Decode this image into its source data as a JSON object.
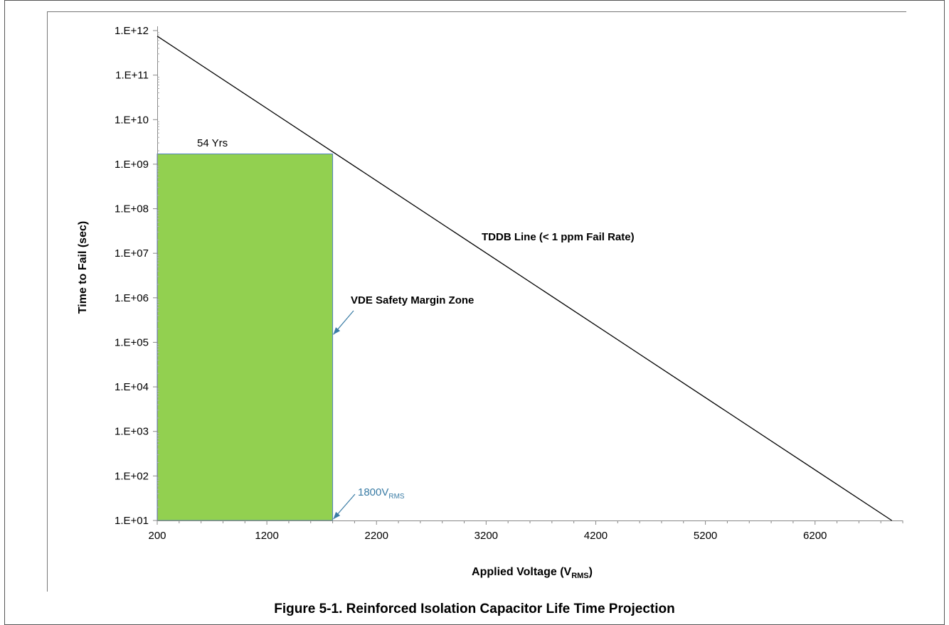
{
  "caption": "Figure 5-1. Reinforced Isolation Capacitor Life Time Projection",
  "chart_data": {
    "type": "line",
    "title": "",
    "xlabel": "Applied Voltage (V",
    "xlabel_sub": "RMS",
    "xlabel_close": ")",
    "ylabel": "Time to Fail (sec)",
    "y_scale": "log",
    "xlim": [
      200,
      7000
    ],
    "ylim": [
      10,
      1000000000000
    ],
    "x_ticks": [
      200,
      1200,
      2200,
      3200,
      4200,
      5200,
      6200
    ],
    "y_ticks": [
      {
        "value": 10,
        "label": "1.E+01"
      },
      {
        "value": 100,
        "label": "1.E+02"
      },
      {
        "value": 1000,
        "label": "1.E+03"
      },
      {
        "value": 10000,
        "label": "1.E+04"
      },
      {
        "value": 100000,
        "label": "1.E+05"
      },
      {
        "value": 1000000,
        "label": "1.E+06"
      },
      {
        "value": 10000000,
        "label": "1.E+07"
      },
      {
        "value": 100000000,
        "label": "1.E+08"
      },
      {
        "value": 1000000000,
        "label": "1.E+09"
      },
      {
        "value": 10000000000,
        "label": "1.E+10"
      },
      {
        "value": 100000000000,
        "label": "1.E+11"
      },
      {
        "value": 1000000000000,
        "label": "1.E+12"
      }
    ],
    "series": [
      {
        "x": [
          200,
          6900
        ],
        "y": [
          750000000000,
          10
        ],
        "color": "#000000"
      }
    ],
    "zone": {
      "x0": 200,
      "x1": 1800,
      "y0": 10,
      "y1": 1700000000,
      "color": "#92d050"
    },
    "annotations": {
      "tddb": "TDDB Line (< 1 ppm Fail Rate)",
      "vde": "VDE Safety Margin Zone",
      "years": "54 Yrs",
      "voltage_value": "1800V",
      "voltage_sub": "RMS"
    },
    "arrow_color": "#3a7ca5"
  }
}
